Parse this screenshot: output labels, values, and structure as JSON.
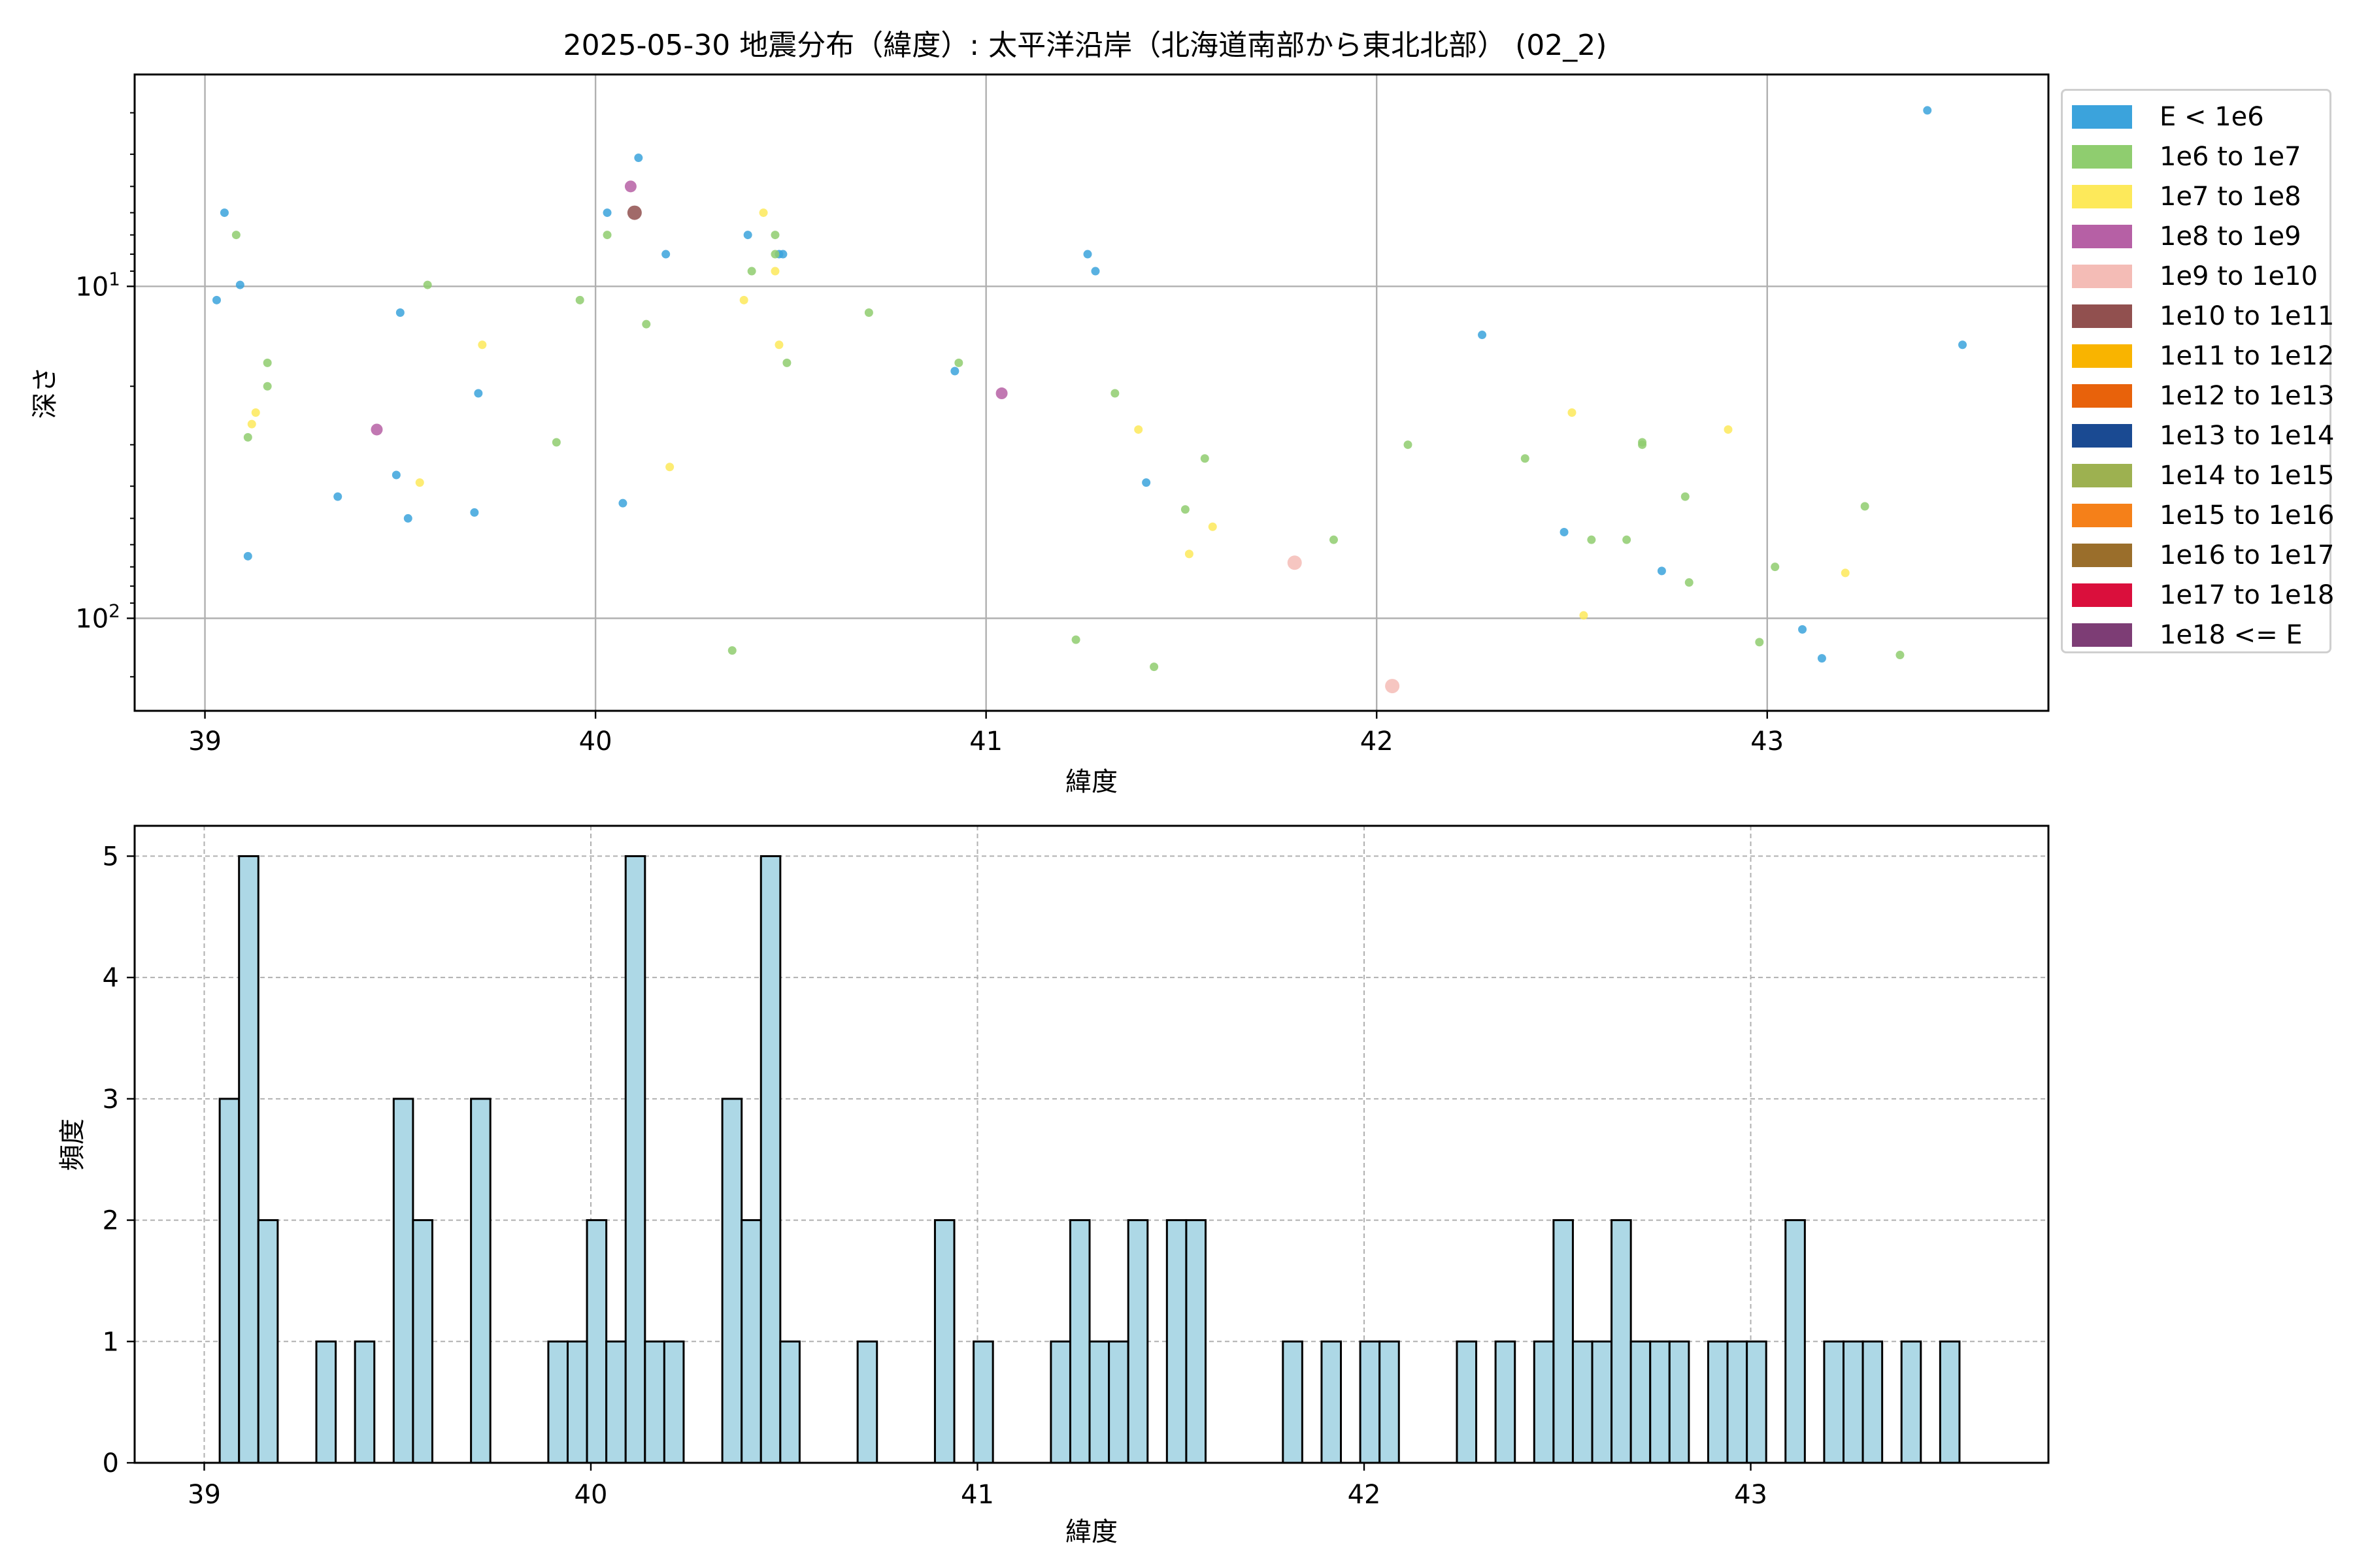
{
  "chart_data": [
    {
      "type": "scatter",
      "title": "2025-05-30 地震分布（緯度）: 太平洋沿岸（北海道南部から東北北部） (02_2)",
      "xlabel": "緯度",
      "ylabel": "深さ",
      "y_scale": "log",
      "y_inverted": true,
      "xlim": [
        38.82,
        43.72
      ],
      "ylim": [
        190,
        2.3
      ],
      "xticks": [
        "39",
        "40",
        "41",
        "42",
        "43"
      ],
      "yticks": [
        "10",
        "100"
      ],
      "yticks_base": "10",
      "yticks_exp": [
        "1",
        "2"
      ],
      "grid": true,
      "legend_position": "outside-right",
      "legend": [
        {
          "label": "E < 1e6",
          "color": "#3ba3dc"
        },
        {
          "label": "1e6 to 1e7",
          "color": "#8fcd6f"
        },
        {
          "label": "1e7 to 1e8",
          "color": "#fde95a"
        },
        {
          "label": "1e8 to 1e9",
          "color": "#b660a5"
        },
        {
          "label": "1e9 to 1e10",
          "color": "#f4bcb6"
        },
        {
          "label": "1e10 to 1e11",
          "color": "#91504f"
        },
        {
          "label": "1e11 to 1e12",
          "color": "#f9b400"
        },
        {
          "label": "1e12 to 1e13",
          "color": "#e8620b"
        },
        {
          "label": "1e13 to 1e14",
          "color": "#1a4a92"
        },
        {
          "label": "1e14 to 1e15",
          "color": "#9db150"
        },
        {
          "label": "1e15 to 1e16",
          "color": "#f58019"
        },
        {
          "label": "1e16 to 1e17",
          "color": "#9a6e2b"
        },
        {
          "label": "1e17 to 1e18",
          "color": "#da0f3c"
        },
        {
          "label": "1e18 <= E",
          "color": "#7d3d75"
        }
      ],
      "series": [
        {
          "name": "E < 1e6",
          "color": "#3ba3dc",
          "size": "small",
          "points": [
            [
              39.03,
              11.0
            ],
            [
              39.05,
              6.0
            ],
            [
              39.09,
              9.9
            ],
            [
              39.11,
              65.0
            ],
            [
              39.34,
              43.0
            ],
            [
              39.49,
              37.0
            ],
            [
              39.5,
              12.0
            ],
            [
              39.52,
              50.0
            ],
            [
              39.69,
              48.0
            ],
            [
              39.7,
              21.0
            ],
            [
              40.03,
              6.0
            ],
            [
              40.07,
              45.0
            ],
            [
              40.11,
              4.1
            ],
            [
              40.18,
              8.0
            ],
            [
              40.39,
              7.0
            ],
            [
              40.47,
              8.0
            ],
            [
              40.48,
              8.0
            ],
            [
              40.92,
              18.0
            ],
            [
              41.26,
              8.0
            ],
            [
              41.28,
              9.0
            ],
            [
              41.41,
              39.0
            ],
            [
              42.27,
              14.0
            ],
            [
              42.48,
              55.0
            ],
            [
              42.73,
              72.0
            ],
            [
              43.09,
              108.0
            ],
            [
              43.14,
              132.0
            ],
            [
              43.41,
              2.95
            ],
            [
              43.5,
              15.0
            ]
          ]
        },
        {
          "name": "1e6 to 1e7",
          "color": "#8fcd6f",
          "size": "small",
          "points": [
            [
              39.08,
              7.0
            ],
            [
              39.11,
              28.5
            ],
            [
              39.16,
              17.0
            ],
            [
              39.16,
              20.0
            ],
            [
              39.57,
              9.9
            ],
            [
              39.9,
              29.5
            ],
            [
              39.96,
              11.0
            ],
            [
              40.03,
              7.0
            ],
            [
              40.13,
              13.0
            ],
            [
              40.35,
              125.0
            ],
            [
              40.4,
              9.0
            ],
            [
              40.46,
              7.0
            ],
            [
              40.46,
              8.0
            ],
            [
              40.49,
              17.0
            ],
            [
              40.7,
              12.0
            ],
            [
              40.93,
              17.0
            ],
            [
              41.23,
              116.0
            ],
            [
              41.33,
              21.0
            ],
            [
              41.43,
              140.0
            ],
            [
              41.51,
              47.0
            ],
            [
              41.56,
              33.0
            ],
            [
              41.89,
              58.0
            ],
            [
              42.08,
              30.0
            ],
            [
              42.38,
              33.0
            ],
            [
              42.55,
              58.0
            ],
            [
              42.64,
              58.0
            ],
            [
              42.68,
              29.5
            ],
            [
              42.68,
              30.0
            ],
            [
              42.8,
              78.0
            ],
            [
              42.79,
              43.0
            ],
            [
              42.98,
              118.0
            ],
            [
              43.02,
              70.0
            ],
            [
              43.25,
              46.0
            ],
            [
              43.34,
              129.0
            ]
          ]
        },
        {
          "name": "1e7 to 1e8",
          "color": "#fde95a",
          "size": "small",
          "points": [
            [
              39.12,
              26.0
            ],
            [
              39.13,
              24.0
            ],
            [
              39.55,
              39.0
            ],
            [
              39.71,
              15.0
            ],
            [
              40.19,
              35.0
            ],
            [
              40.38,
              11.0
            ],
            [
              40.43,
              6.0
            ],
            [
              40.46,
              9.0
            ],
            [
              40.47,
              15.0
            ],
            [
              41.39,
              27.0
            ],
            [
              41.52,
              64.0
            ],
            [
              41.58,
              53.0
            ],
            [
              42.5,
              24.0
            ],
            [
              42.53,
              98.0
            ],
            [
              42.9,
              27.0
            ],
            [
              43.2,
              73.0
            ]
          ]
        },
        {
          "name": "1e8 to 1e9",
          "color": "#b660a5",
          "size": "medium",
          "points": [
            [
              39.44,
              27.0
            ],
            [
              40.09,
              5.0
            ],
            [
              41.04,
              21.0
            ]
          ]
        },
        {
          "name": "1e9 to 1e10",
          "color": "#f4bcb6",
          "size": "large",
          "points": [
            [
              41.79,
              68.0
            ],
            [
              42.04,
              160.0
            ]
          ]
        },
        {
          "name": "1e10 to 1e11",
          "color": "#91504f",
          "size": "large",
          "points": [
            [
              40.1,
              6.0
            ]
          ]
        }
      ]
    },
    {
      "type": "bar",
      "subtype": "histogram",
      "title": "",
      "xlabel": "緯度",
      "ylabel": "頻度",
      "xlim": [
        38.82,
        43.77
      ],
      "ylim": [
        0,
        5.25
      ],
      "xticks": [
        "39",
        "40",
        "41",
        "42",
        "43"
      ],
      "yticks": [
        "0",
        "1",
        "2",
        "3",
        "4",
        "5"
      ],
      "grid": true,
      "bar_color": "#add8e6",
      "edge_color": "#000000",
      "bin_width": 0.05,
      "bin_starts": [
        39.04,
        39.09,
        39.14,
        39.29,
        39.39,
        39.49,
        39.54,
        39.69,
        39.89,
        39.94,
        39.99,
        40.04,
        40.09,
        40.14,
        40.19,
        40.34,
        40.39,
        40.44,
        40.49,
        40.69,
        40.89,
        40.99,
        41.19,
        41.24,
        41.29,
        41.34,
        41.39,
        41.49,
        41.54,
        41.79,
        41.89,
        41.99,
        42.04,
        42.24,
        42.34,
        42.44,
        42.49,
        42.54,
        42.59,
        42.64,
        42.69,
        42.74,
        42.79,
        42.89,
        42.94,
        42.99,
        43.09,
        43.19,
        43.24,
        43.29,
        43.39,
        43.49
      ],
      "counts": [
        3,
        5,
        2,
        1,
        1,
        3,
        2,
        3,
        1,
        1,
        2,
        1,
        5,
        1,
        1,
        3,
        2,
        5,
        1,
        1,
        2,
        1,
        1,
        2,
        1,
        1,
        2,
        2,
        2,
        1,
        1,
        1,
        1,
        1,
        1,
        1,
        2,
        1,
        1,
        2,
        1,
        1,
        1,
        1,
        1,
        1,
        2,
        1,
        1,
        1,
        1,
        1
      ]
    }
  ]
}
